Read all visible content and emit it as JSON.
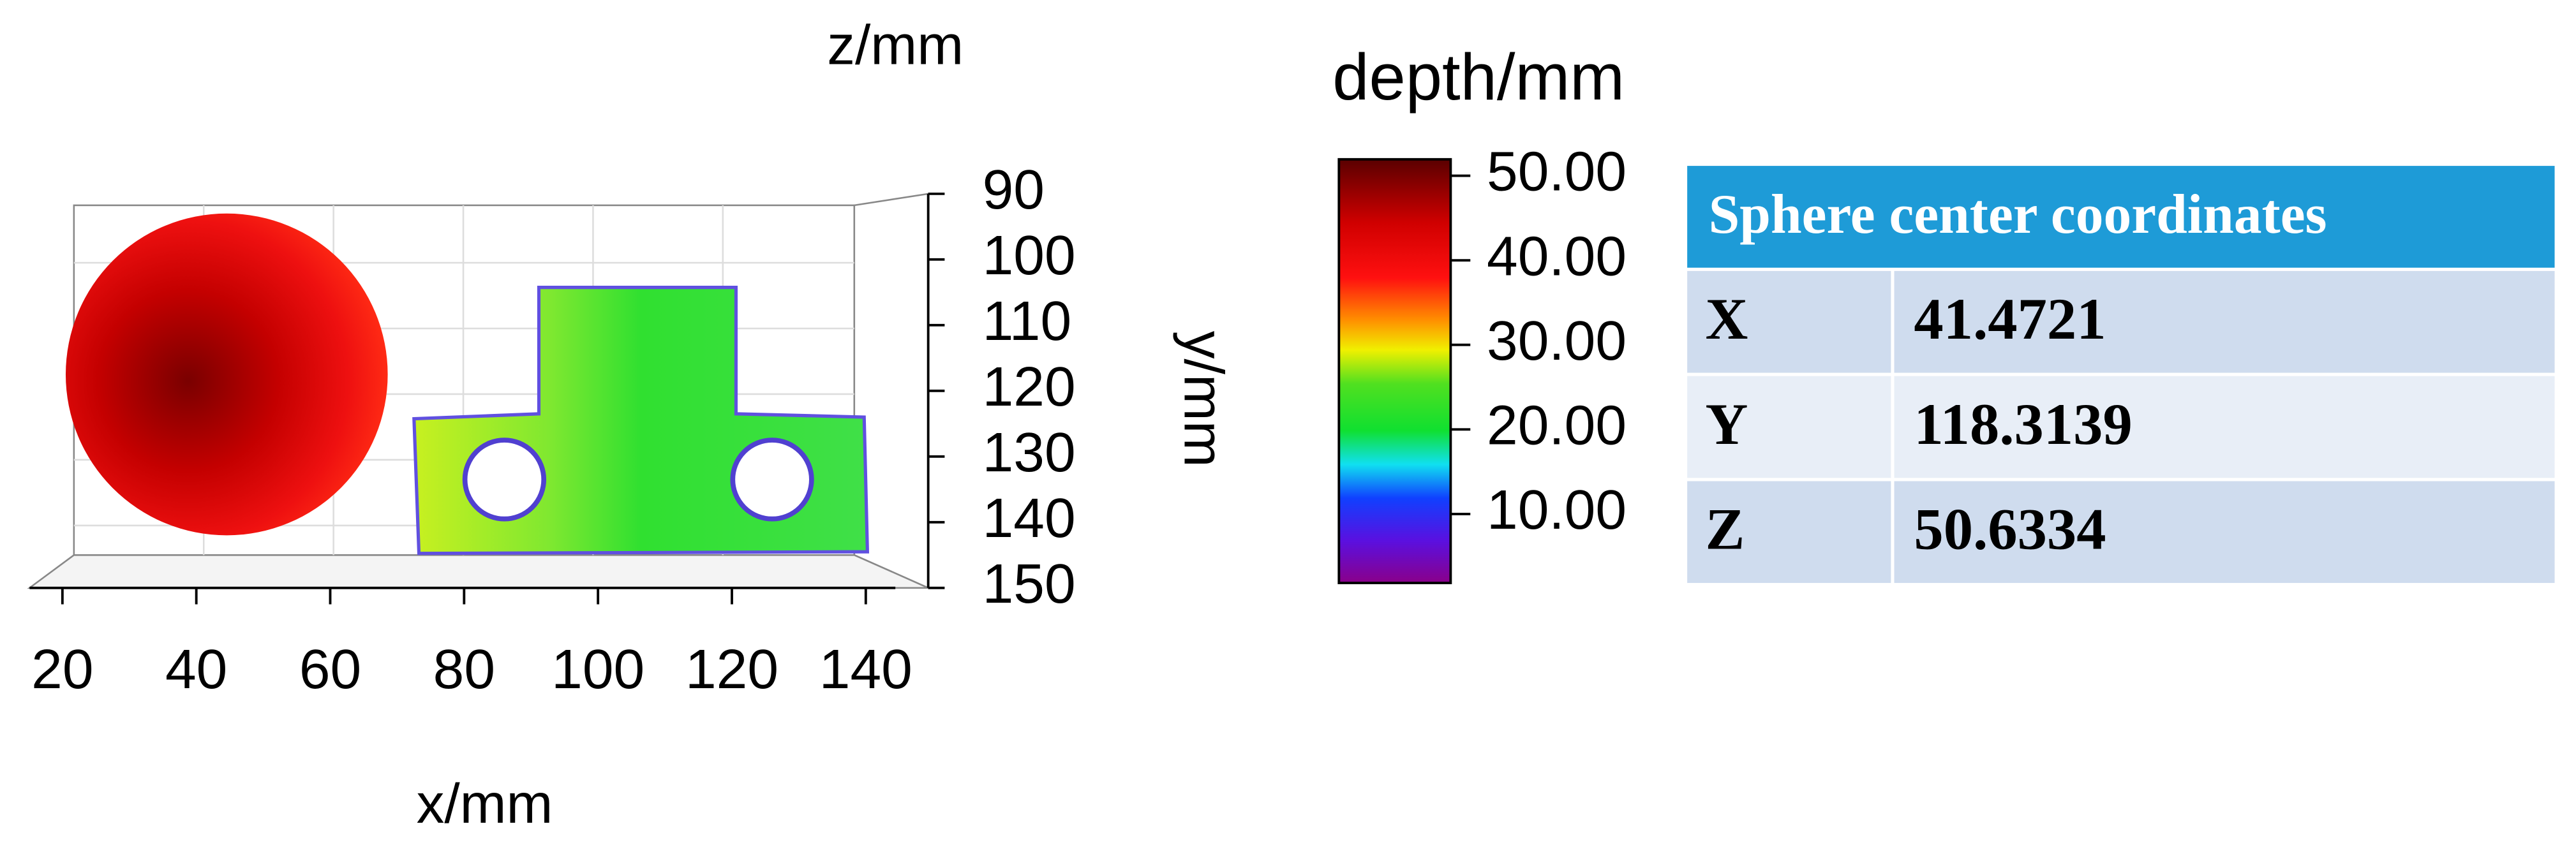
{
  "plot": {
    "z_label": "z/mm",
    "y_label": "y/mm",
    "x_label": "x/mm",
    "x_ticks": [
      20,
      40,
      60,
      80,
      100,
      120,
      140
    ],
    "y_ticks": [
      90,
      100,
      110,
      120,
      130,
      140,
      150
    ]
  },
  "colorbar": {
    "title": "depth/mm",
    "ticks": [
      "50.00",
      "40.00",
      "30.00",
      "20.00",
      "10.00"
    ]
  },
  "table": {
    "title": "Sphere center coordinates",
    "rows": [
      [
        "X",
        41.4721
      ],
      [
        "Y",
        118.3139
      ],
      [
        "Z",
        50.6334
      ]
    ]
  }
}
